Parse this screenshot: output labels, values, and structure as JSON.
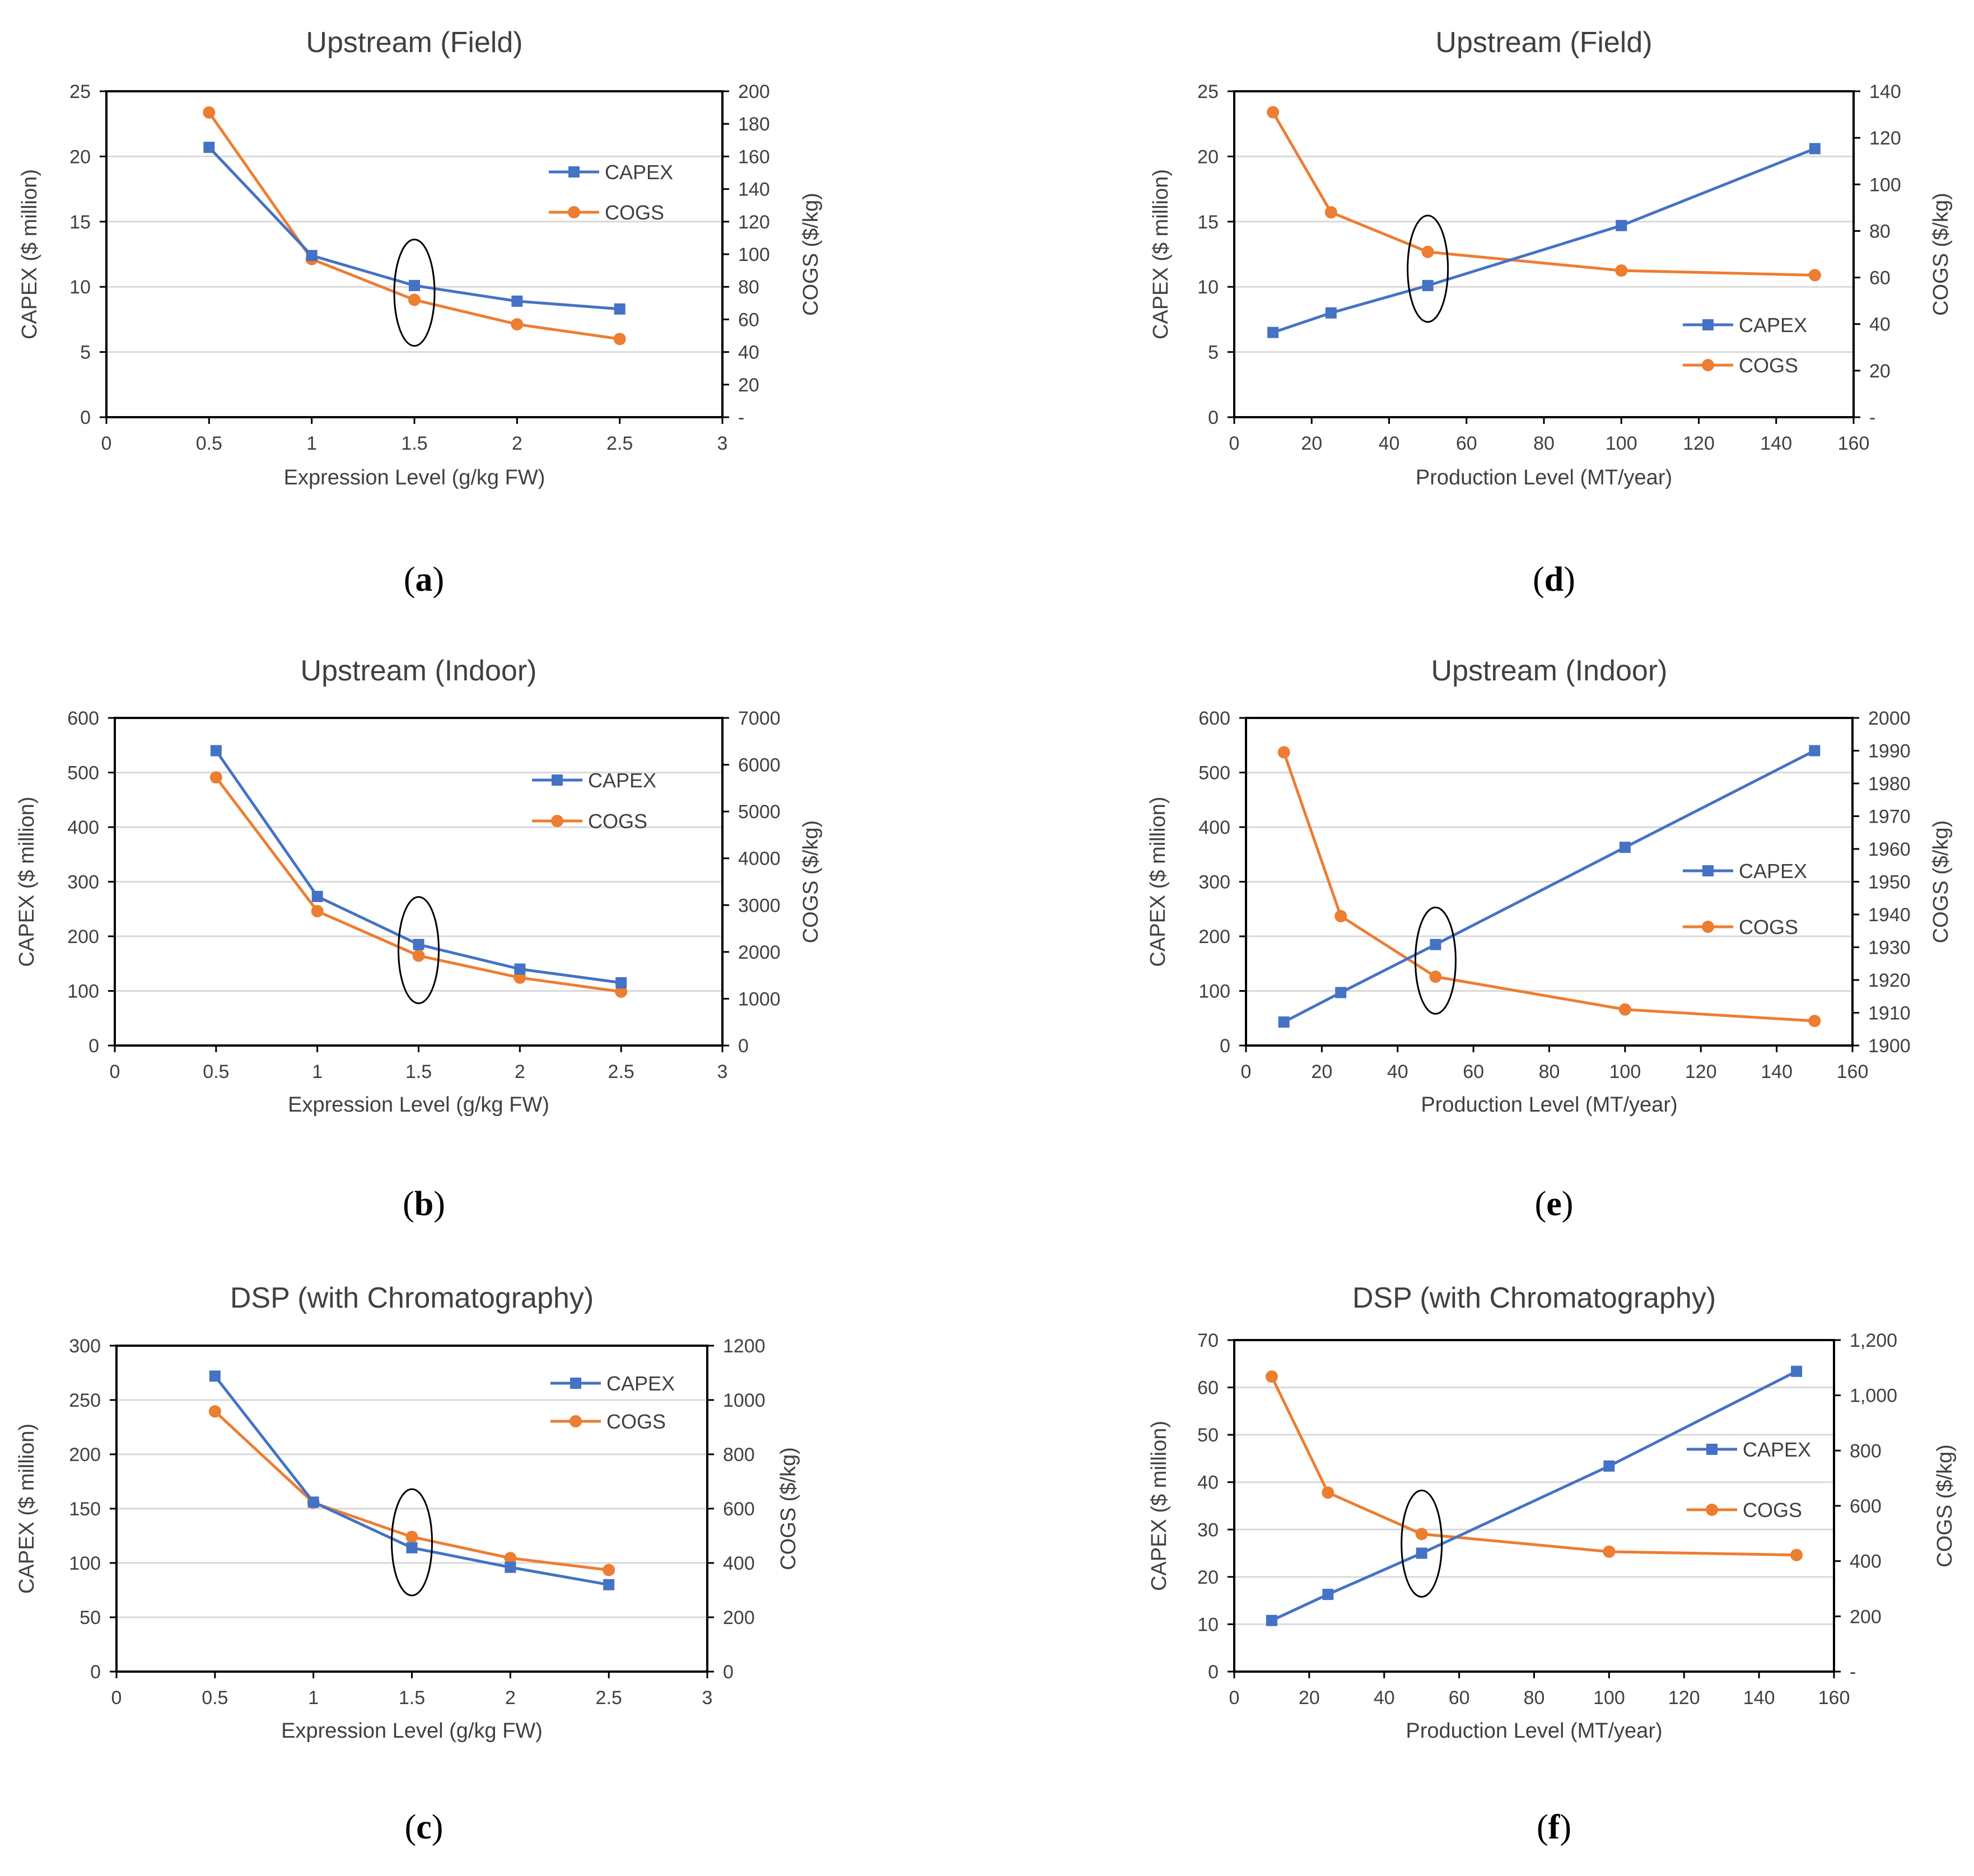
{
  "colors": {
    "capex": "#4472C4",
    "cogs": "#ED7D31",
    "grid": "#D9D9D9",
    "axis": "#000000",
    "text": "#404040"
  },
  "panels": [
    {
      "caption_letter": "a"
    },
    {
      "caption_letter": "b"
    },
    {
      "caption_letter": "c"
    },
    {
      "caption_letter": "d"
    },
    {
      "caption_letter": "e"
    },
    {
      "caption_letter": "f"
    }
  ],
  "chart_data": [
    {
      "type": "line",
      "title": "Upstream (Field)",
      "xlabel": "Expression Level (g/kg  FW)",
      "ylabel": "CAPEX ($ million)",
      "y2label": "COGS ($/kg)",
      "xlim": [
        0,
        3
      ],
      "xticks": [
        0,
        0.5,
        1,
        1.5,
        2,
        2.5,
        3
      ],
      "xtick_labels": [
        "0",
        "0.5",
        "1",
        "1.5",
        "2",
        "2.5",
        "3"
      ],
      "ylim": [
        0,
        25
      ],
      "yticks": [
        0,
        5,
        10,
        15,
        20,
        25
      ],
      "ytick_labels": [
        "0",
        "5",
        "10",
        "15",
        "20",
        "25"
      ],
      "y2lim": [
        0,
        200
      ],
      "y2ticks": [
        0,
        20,
        40,
        60,
        80,
        100,
        120,
        140,
        160,
        180,
        200
      ],
      "y2tick_labels": [
        "-",
        "20",
        "40",
        "60",
        "80",
        "100",
        "120",
        "140",
        "160",
        "180",
        "200"
      ],
      "series": [
        {
          "name": "CAPEX",
          "axis": "left",
          "marker": "square",
          "x": [
            0.5,
            1,
            1.5,
            2,
            2.5
          ],
          "values": [
            20.7,
            12.4,
            10.1,
            8.9,
            8.3
          ]
        },
        {
          "name": "COGS",
          "axis": "right",
          "marker": "circle",
          "x": [
            0.5,
            1,
            1.5,
            2,
            2.5
          ],
          "values": [
            187,
            97,
            72,
            57,
            48
          ]
        }
      ],
      "legend_position": "right-upper",
      "highlight_x": 1.5
    },
    {
      "type": "line",
      "title": "Upstream (Indoor)",
      "xlabel": "Expression Level (g/kg  FW)",
      "ylabel": "CAPEX ($ million)",
      "y2label": "COGS ($/kg)",
      "xlim": [
        0,
        3
      ],
      "xticks": [
        0,
        0.5,
        1,
        1.5,
        2,
        2.5,
        3
      ],
      "xtick_labels": [
        "0",
        "0.5",
        "1",
        "1.5",
        "2",
        "2.5",
        "3"
      ],
      "ylim": [
        0,
        600
      ],
      "yticks": [
        0,
        100,
        200,
        300,
        400,
        500,
        600
      ],
      "ytick_labels": [
        "0",
        "100",
        "200",
        "300",
        "400",
        "500",
        "600"
      ],
      "y2lim": [
        0,
        7000
      ],
      "y2ticks": [
        0,
        1000,
        2000,
        3000,
        4000,
        5000,
        6000,
        7000
      ],
      "y2tick_labels": [
        "0",
        "1000",
        "2000",
        "3000",
        "4000",
        "5000",
        "6000",
        "7000"
      ],
      "series": [
        {
          "name": "CAPEX",
          "axis": "left",
          "marker": "square",
          "x": [
            0.5,
            1,
            1.5,
            2,
            2.5
          ],
          "values": [
            540,
            273,
            185,
            140,
            115
          ]
        },
        {
          "name": "COGS",
          "axis": "right",
          "marker": "circle",
          "x": [
            0.5,
            1,
            1.5,
            2,
            2.5
          ],
          "values": [
            5730,
            2870,
            1920,
            1450,
            1150
          ]
        }
      ],
      "legend_position": "right-upper",
      "highlight_x": 1.5
    },
    {
      "type": "line",
      "title": "DSP  (with Chromatography)",
      "xlabel": "Expression Level (g/kg  FW)",
      "ylabel": "CAPEX ($ million)",
      "y2label": "COGS ($/kg)",
      "xlim": [
        0,
        3
      ],
      "xticks": [
        0,
        0.5,
        1,
        1.5,
        2,
        2.5,
        3
      ],
      "xtick_labels": [
        "0",
        "0.5",
        "1",
        "1.5",
        "2",
        "2.5",
        "3"
      ],
      "ylim": [
        0,
        300
      ],
      "yticks": [
        0,
        50,
        100,
        150,
        200,
        250,
        300
      ],
      "ytick_labels": [
        "0",
        "50",
        "100",
        "150",
        "200",
        "250",
        "300"
      ],
      "y2lim": [
        0,
        1200
      ],
      "y2ticks": [
        0,
        200,
        400,
        600,
        800,
        1000,
        1200
      ],
      "y2tick_labels": [
        "0",
        "200",
        "400",
        "600",
        "800",
        "1000",
        "1200"
      ],
      "series": [
        {
          "name": "CAPEX",
          "axis": "left",
          "marker": "square",
          "x": [
            0.5,
            1,
            1.5,
            2,
            2.5
          ],
          "values": [
            272,
            156,
            114,
            96,
            80
          ]
        },
        {
          "name": "COGS",
          "axis": "right",
          "marker": "circle",
          "x": [
            0.5,
            1,
            1.5,
            2,
            2.5
          ],
          "values": [
            958,
            622,
            496,
            418,
            374
          ]
        }
      ],
      "legend_position": "right-upper",
      "highlight_x": 1.5
    },
    {
      "type": "line",
      "title": "Upstream (Field)",
      "xlabel": "Production Level (MT/year)",
      "ylabel": "CAPEX ($ million)",
      "y2label": "COGS ($/kg)",
      "xlim": [
        0,
        160
      ],
      "xticks": [
        0,
        20,
        40,
        60,
        80,
        100,
        120,
        140,
        160
      ],
      "xtick_labels": [
        "0",
        "20",
        "40",
        "60",
        "80",
        "100",
        "120",
        "140",
        "160"
      ],
      "ylim": [
        0,
        25
      ],
      "yticks": [
        0,
        5,
        10,
        15,
        20,
        25
      ],
      "ytick_labels": [
        "0",
        "5",
        "10",
        "15",
        "20",
        "25"
      ],
      "y2lim": [
        0,
        140
      ],
      "y2ticks": [
        0,
        20,
        40,
        60,
        80,
        100,
        120,
        140
      ],
      "y2tick_labels": [
        "-",
        "20",
        "40",
        "60",
        "80",
        "100",
        "120",
        "140"
      ],
      "series": [
        {
          "name": "CAPEX",
          "axis": "left",
          "marker": "square",
          "x": [
            10,
            25,
            50,
            100,
            150
          ],
          "values": [
            6.5,
            8.0,
            10.1,
            14.7,
            20.6
          ]
        },
        {
          "name": "COGS",
          "axis": "right",
          "marker": "circle",
          "x": [
            10,
            25,
            50,
            100,
            150
          ],
          "values": [
            131,
            88,
            71,
            63,
            61
          ]
        }
      ],
      "legend_position": "right-middle",
      "highlight_x": 50
    },
    {
      "type": "line",
      "title": "Upstream (Indoor)",
      "xlabel": "Production Level (MT/year)",
      "ylabel": "CAPEX ($ million)",
      "y2label": "COGS ($/kg)",
      "xlim": [
        0,
        160
      ],
      "xticks": [
        0,
        20,
        40,
        60,
        80,
        100,
        120,
        140,
        160
      ],
      "xtick_labels": [
        "0",
        "20",
        "40",
        "60",
        "80",
        "100",
        "120",
        "140",
        "160"
      ],
      "ylim": [
        0,
        600
      ],
      "yticks": [
        0,
        100,
        200,
        300,
        400,
        500,
        600
      ],
      "ytick_labels": [
        "0",
        "100",
        "200",
        "300",
        "400",
        "500",
        "600"
      ],
      "y2lim": [
        1900,
        2000
      ],
      "y2ticks": [
        1900,
        1910,
        1920,
        1930,
        1940,
        1950,
        1960,
        1970,
        1980,
        1990,
        2000
      ],
      "y2tick_labels": [
        "1900",
        "1910",
        "1920",
        "1930",
        "1940",
        "1950",
        "1960",
        "1970",
        "1980",
        "1990",
        "2000"
      ],
      "series": [
        {
          "name": "CAPEX",
          "axis": "left",
          "marker": "square",
          "x": [
            10,
            25,
            50,
            100,
            150
          ],
          "values": [
            43,
            97,
            185,
            363,
            540
          ]
        },
        {
          "name": "COGS",
          "axis": "right",
          "marker": "circle",
          "x": [
            10,
            25,
            50,
            100,
            150
          ],
          "values": [
            1989.5,
            1939.5,
            1921,
            1911,
            1907.5
          ]
        }
      ],
      "legend_position": "right-middle",
      "highlight_x": 50
    },
    {
      "type": "line",
      "title": "DSP  (with Chromatography)",
      "xlabel": "Production Level (MT/year)",
      "ylabel": "CAPEX ($ million)",
      "y2label": "COGS ($/kg)",
      "xlim": [
        0,
        160
      ],
      "xticks": [
        0,
        20,
        40,
        60,
        80,
        100,
        120,
        140,
        160
      ],
      "xtick_labels": [
        "0",
        "20",
        "40",
        "60",
        "80",
        "100",
        "120",
        "140",
        "160"
      ],
      "ylim": [
        0,
        70
      ],
      "yticks": [
        0,
        10,
        20,
        30,
        40,
        50,
        60,
        70
      ],
      "ytick_labels": [
        "0",
        "10",
        "20",
        "30",
        "40",
        "50",
        "60",
        "70"
      ],
      "y2lim": [
        0,
        1200
      ],
      "y2ticks": [
        0,
        200,
        400,
        600,
        800,
        1000,
        1200
      ],
      "y2tick_labels": [
        "-",
        "200",
        "400",
        "600",
        "800",
        "1,000",
        "1,200"
      ],
      "series": [
        {
          "name": "CAPEX",
          "axis": "left",
          "marker": "square",
          "x": [
            10,
            25,
            50,
            100,
            150
          ],
          "values": [
            10.8,
            16.3,
            25,
            43.4,
            63.4
          ]
        },
        {
          "name": "COGS",
          "axis": "right",
          "marker": "circle",
          "x": [
            10,
            25,
            50,
            100,
            150
          ],
          "values": [
            1068,
            648,
            498,
            434,
            422
          ]
        }
      ],
      "legend_position": "right-middle",
      "highlight_x": 50
    }
  ]
}
